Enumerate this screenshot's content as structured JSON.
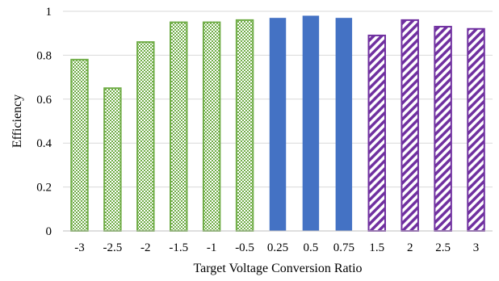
{
  "chart_data": {
    "type": "bar",
    "title": "",
    "xlabel": "Target Voltage Conversion Ratio",
    "ylabel": "Efficiency",
    "ylim": [
      0,
      1
    ],
    "yticks": [
      "0",
      "0.2",
      "0.4",
      "0.6",
      "0.8",
      "1"
    ],
    "grid": true,
    "legend": "none",
    "categories": [
      "-3",
      "-2.5",
      "-2",
      "-1.5",
      "-1",
      "-0.5",
      "0.25",
      "0.5",
      "0.75",
      "1.5",
      "2",
      "2.5",
      "3"
    ],
    "values": [
      0.78,
      0.65,
      0.86,
      0.95,
      0.95,
      0.96,
      0.97,
      0.98,
      0.97,
      0.89,
      0.96,
      0.93,
      0.92
    ],
    "bar_styles": [
      "checker",
      "checker",
      "checker",
      "checker",
      "checker",
      "checker",
      "solid",
      "solid",
      "solid",
      "hatch",
      "hatch",
      "hatch",
      "hatch"
    ],
    "colors": {
      "checker": "#70ad47",
      "solid": "#4472c4",
      "hatch": "#7030a0",
      "grid": "#d9d9d9",
      "axis": "#bfbfbf"
    }
  }
}
